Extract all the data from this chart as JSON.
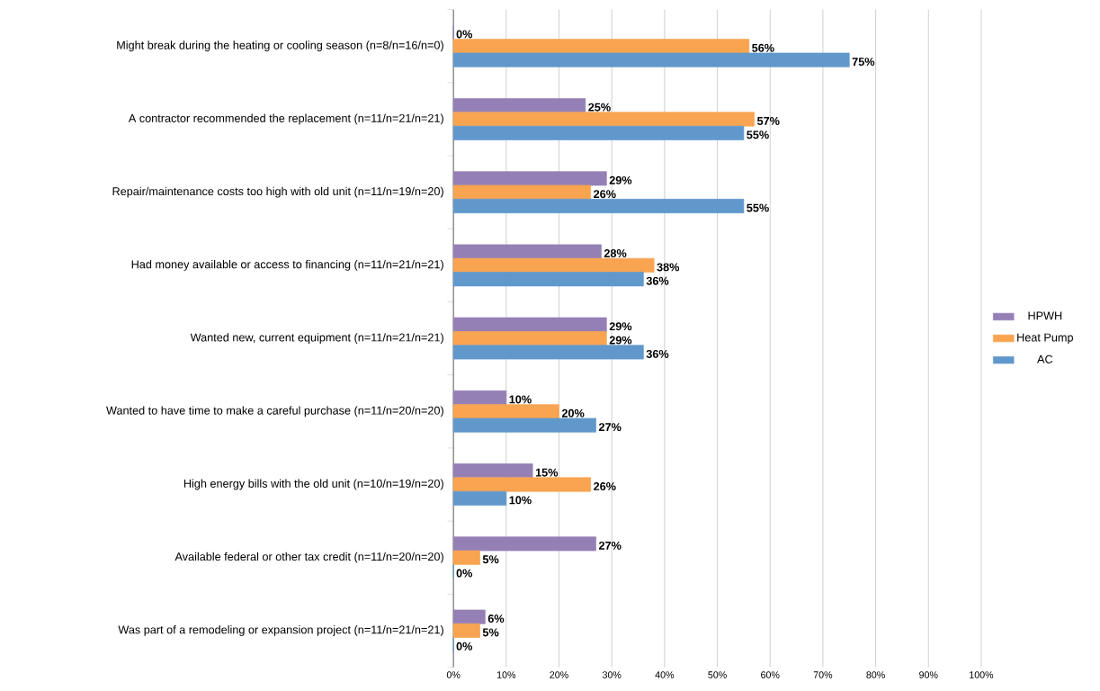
{
  "chart_data": {
    "type": "bar",
    "orientation": "horizontal",
    "categories": [
      "Might break during the heating or cooling season  (n=8/n=16/n=0)",
      "A contractor recommended the replacement (n=11/n=21/n=21)",
      "Repair/maintenance costs too high with old unit (n=11/n=19/n=20)",
      "Had money available or access to financing (n=11/n=21/n=21)",
      "Wanted new, current equipment (n=11/n=21/n=21)",
      "Wanted to have time to make a careful purchase (n=11/n=20/n=20)",
      "High energy bills with the old unit (n=10/n=19/n=20)",
      "Available federal or other tax credit (n=11/n=20/n=20)",
      "Was part of a remodeling or expansion project (n=11/n=21/n=21)"
    ],
    "series": [
      {
        "name": "HPWH",
        "color": "#9580b5",
        "values": [
          0,
          25,
          29,
          28,
          29,
          10,
          15,
          27,
          6
        ],
        "value_labels": [
          "0%",
          "25%",
          "29%",
          "28%",
          "29%",
          "10%",
          "15%",
          "27%",
          "6%"
        ]
      },
      {
        "name": "Heat Pump",
        "color": "#f9a451",
        "values": [
          56,
          57,
          26,
          38,
          29,
          20,
          26,
          5,
          5
        ],
        "value_labels": [
          "56%",
          "57%",
          "26%",
          "38%",
          "29%",
          "20%",
          "26%",
          "5%",
          "5%"
        ]
      },
      {
        "name": "AC",
        "color": "#6198cc",
        "values": [
          75,
          55,
          55,
          36,
          36,
          27,
          10,
          0,
          0
        ],
        "value_labels": [
          "75%",
          "55%",
          "55%",
          "36%",
          "36%",
          "27%",
          "10%",
          "0%",
          "0%"
        ]
      }
    ],
    "xlim": [
      0,
      100
    ],
    "xticks": [
      {
        "value": 0,
        "label": "0%"
      },
      {
        "value": 10,
        "label": "10%"
      },
      {
        "value": 20,
        "label": "20%"
      },
      {
        "value": 30,
        "label": "30%"
      },
      {
        "value": 40,
        "label": "40%"
      },
      {
        "value": 50,
        "label": "50%"
      },
      {
        "value": 60,
        "label": "60%"
      },
      {
        "value": 70,
        "label": "70%"
      },
      {
        "value": 80,
        "label": "80%"
      },
      {
        "value": 90,
        "label": "90%"
      },
      {
        "value": 100,
        "label": "100%"
      }
    ],
    "grid": "x",
    "legend": "right"
  }
}
